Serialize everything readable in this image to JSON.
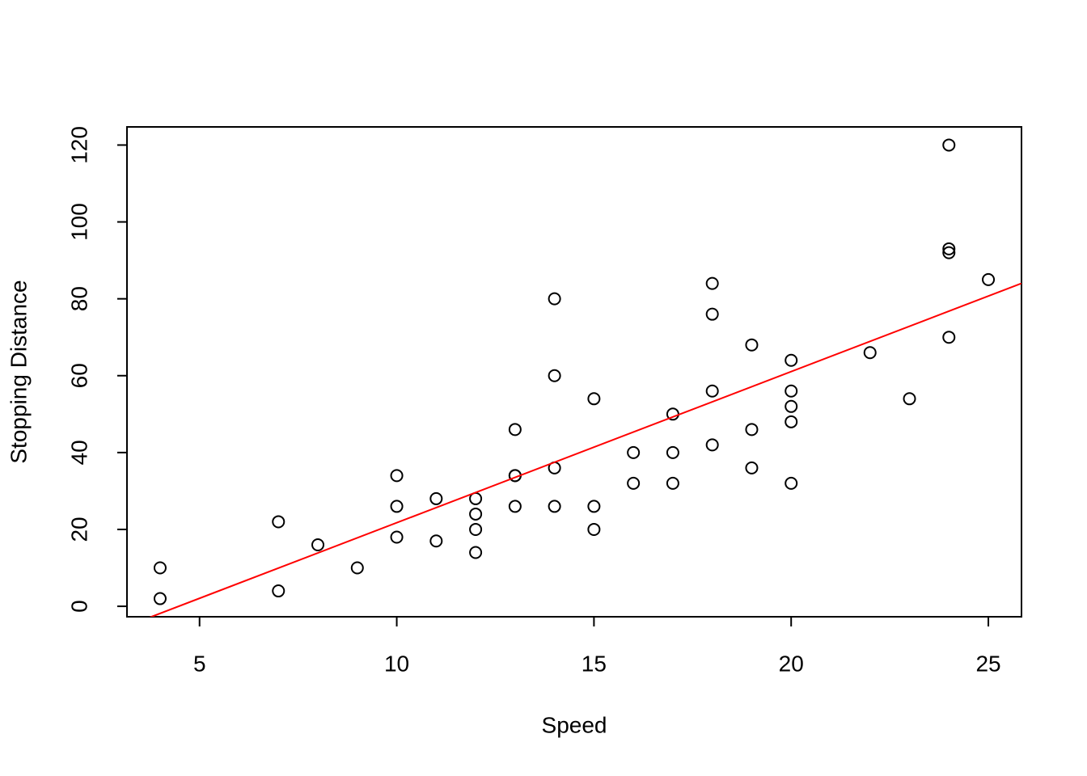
{
  "chart_data": {
    "type": "scatter",
    "x_label": "Speed",
    "y_label": "Stopping Distance",
    "x": [
      4,
      4,
      7,
      7,
      8,
      9,
      10,
      10,
      10,
      11,
      11,
      12,
      12,
      12,
      12,
      13,
      13,
      13,
      13,
      14,
      14,
      14,
      14,
      15,
      15,
      15,
      16,
      16,
      17,
      17,
      17,
      18,
      18,
      18,
      18,
      19,
      19,
      19,
      20,
      20,
      20,
      20,
      20,
      22,
      23,
      24,
      24,
      24,
      24,
      25
    ],
    "values": [
      2,
      10,
      4,
      22,
      16,
      10,
      18,
      26,
      34,
      17,
      28,
      14,
      20,
      24,
      28,
      26,
      34,
      34,
      46,
      26,
      36,
      60,
      80,
      20,
      26,
      54,
      32,
      40,
      32,
      40,
      50,
      42,
      56,
      76,
      84,
      36,
      46,
      68,
      32,
      48,
      52,
      56,
      64,
      66,
      54,
      70,
      92,
      93,
      120,
      85
    ],
    "color": "#000000",
    "trend_line": {
      "intercept": -17.579,
      "slope": 3.932,
      "color": "#ff0000"
    },
    "xlim": [
      3.16,
      25.84
    ],
    "ylim": [
      -2.72,
      124.72
    ],
    "xticks": [
      5,
      10,
      15,
      20,
      25
    ],
    "yticks": [
      0,
      20,
      40,
      60,
      80,
      100,
      120
    ]
  }
}
